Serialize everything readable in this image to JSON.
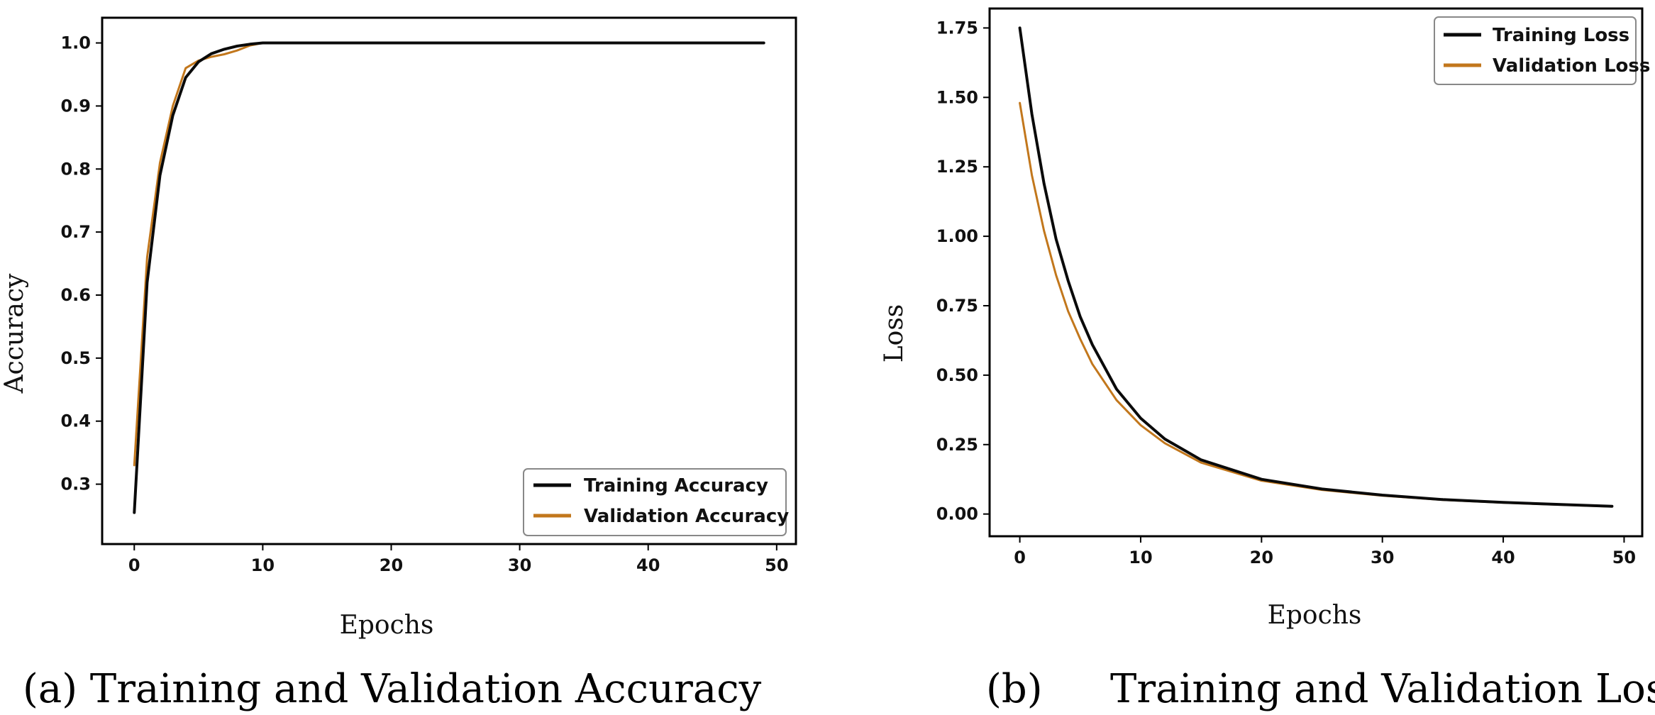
{
  "chart_data": [
    {
      "type": "line",
      "caption": "(a) Training and Validation Accuracy",
      "xlabel": "Epochs",
      "ylabel": "Accuracy",
      "xlim": [
        -2.5,
        51.5
      ],
      "ylim": [
        0.205,
        1.04
      ],
      "x_ticks": [
        0,
        10,
        20,
        30,
        40,
        50
      ],
      "y_ticks": [
        0.3,
        0.4,
        0.5,
        0.6,
        0.7,
        0.8,
        0.9,
        1.0
      ],
      "x_tick_labels": [
        "0",
        "10",
        "20",
        "30",
        "40",
        "50"
      ],
      "y_tick_labels": [
        "0.3",
        "0.4",
        "0.5",
        "0.6",
        "0.7",
        "0.8",
        "0.9",
        "1.0"
      ],
      "legend": "lower-right",
      "grid": false,
      "series": [
        {
          "name": "Training Accuracy",
          "color": "#0a0a0a",
          "x": [
            0,
            1,
            2,
            3,
            4,
            5,
            6,
            7,
            8,
            9,
            10,
            11,
            12,
            15,
            20,
            30,
            40,
            49
          ],
          "y": [
            0.255,
            0.62,
            0.79,
            0.885,
            0.945,
            0.97,
            0.983,
            0.99,
            0.995,
            0.998,
            1.0,
            1.0,
            1.0,
            1.0,
            1.0,
            1.0,
            1.0,
            1.0
          ]
        },
        {
          "name": "Validation Accuracy",
          "color": "#c2771c",
          "x": [
            0,
            1,
            2,
            3,
            4,
            5,
            6,
            7,
            8,
            9,
            10,
            11,
            12,
            15,
            20,
            30,
            40,
            49
          ],
          "y": [
            0.33,
            0.66,
            0.81,
            0.9,
            0.96,
            0.972,
            0.978,
            0.982,
            0.988,
            0.996,
            1.0,
            1.0,
            1.0,
            1.0,
            1.0,
            1.0,
            1.0,
            1.0
          ]
        }
      ]
    },
    {
      "type": "line",
      "caption_label": "(b)",
      "caption": "Training and Validation Loss",
      "xlabel": "Epochs",
      "ylabel": "Loss",
      "xlim": [
        -2.5,
        51.5
      ],
      "ylim": [
        -0.08,
        1.82
      ],
      "x_ticks": [
        0,
        10,
        20,
        30,
        40,
        50
      ],
      "y_ticks": [
        0.0,
        0.25,
        0.5,
        0.75,
        1.0,
        1.25,
        1.5,
        1.75
      ],
      "x_tick_labels": [
        "0",
        "10",
        "20",
        "30",
        "40",
        "50"
      ],
      "y_tick_labels": [
        "0.00",
        "0.25",
        "0.50",
        "0.75",
        "1.00",
        "1.25",
        "1.50",
        "1.75"
      ],
      "legend": "top-right",
      "grid": false,
      "series": [
        {
          "name": "Training Loss",
          "color": "#0a0a0a",
          "x": [
            0,
            1,
            2,
            3,
            4,
            5,
            6,
            8,
            10,
            12,
            15,
            20,
            25,
            30,
            35,
            40,
            45,
            49
          ],
          "y": [
            1.75,
            1.44,
            1.19,
            0.99,
            0.84,
            0.71,
            0.61,
            0.45,
            0.345,
            0.27,
            0.195,
            0.125,
            0.09,
            0.068,
            0.052,
            0.042,
            0.034,
            0.028
          ]
        },
        {
          "name": "Validation Loss",
          "color": "#c2771c",
          "x": [
            0,
            1,
            2,
            3,
            4,
            5,
            6,
            8,
            10,
            12,
            15,
            20,
            25,
            30,
            35,
            40,
            45,
            49
          ],
          "y": [
            1.48,
            1.22,
            1.02,
            0.86,
            0.73,
            0.63,
            0.54,
            0.41,
            0.32,
            0.255,
            0.185,
            0.12,
            0.087,
            0.066,
            0.051,
            0.041,
            0.033,
            0.027
          ]
        }
      ]
    }
  ]
}
